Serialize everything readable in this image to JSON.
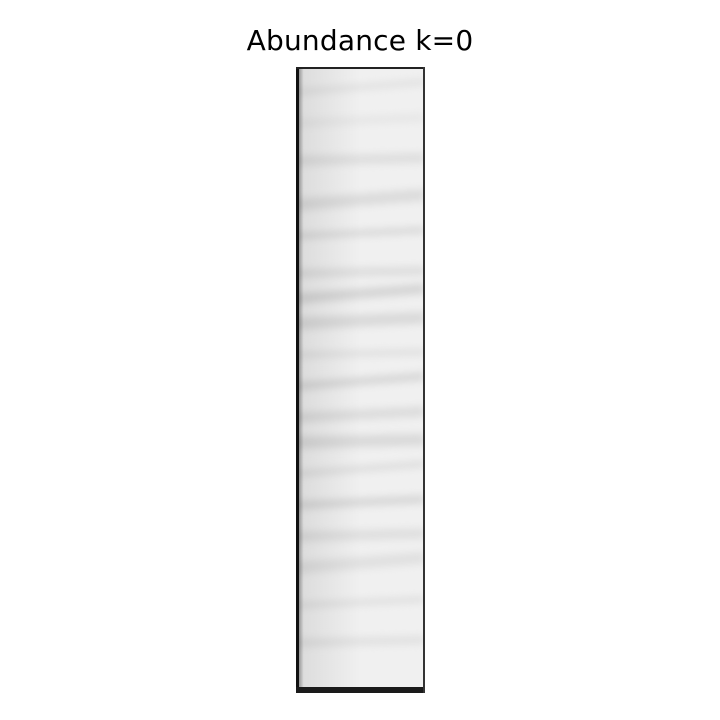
{
  "chart_data": {
    "type": "heatmap",
    "title": "Abundance k=0",
    "xlabel": "",
    "ylabel": "",
    "axes_visible": false,
    "colormap": "gray",
    "value_range": [
      0,
      1
    ],
    "background_value": 0.94,
    "edge_value": 0.05,
    "bands": [
      {
        "position": 0.04,
        "value": 0.88
      },
      {
        "position": 0.09,
        "value": 0.9
      },
      {
        "position": 0.15,
        "value": 0.87
      },
      {
        "position": 0.22,
        "value": 0.86
      },
      {
        "position": 0.27,
        "value": 0.84
      },
      {
        "position": 0.33,
        "value": 0.86
      },
      {
        "position": 0.37,
        "value": 0.83
      },
      {
        "position": 0.41,
        "value": 0.85
      },
      {
        "position": 0.46,
        "value": 0.87
      },
      {
        "position": 0.51,
        "value": 0.84
      },
      {
        "position": 0.56,
        "value": 0.86
      },
      {
        "position": 0.6,
        "value": 0.85
      },
      {
        "position": 0.65,
        "value": 0.86
      },
      {
        "position": 0.7,
        "value": 0.84
      },
      {
        "position": 0.75,
        "value": 0.87
      },
      {
        "position": 0.8,
        "value": 0.88
      },
      {
        "position": 0.86,
        "value": 0.87
      },
      {
        "position": 0.92,
        "value": 0.88
      }
    ]
  }
}
